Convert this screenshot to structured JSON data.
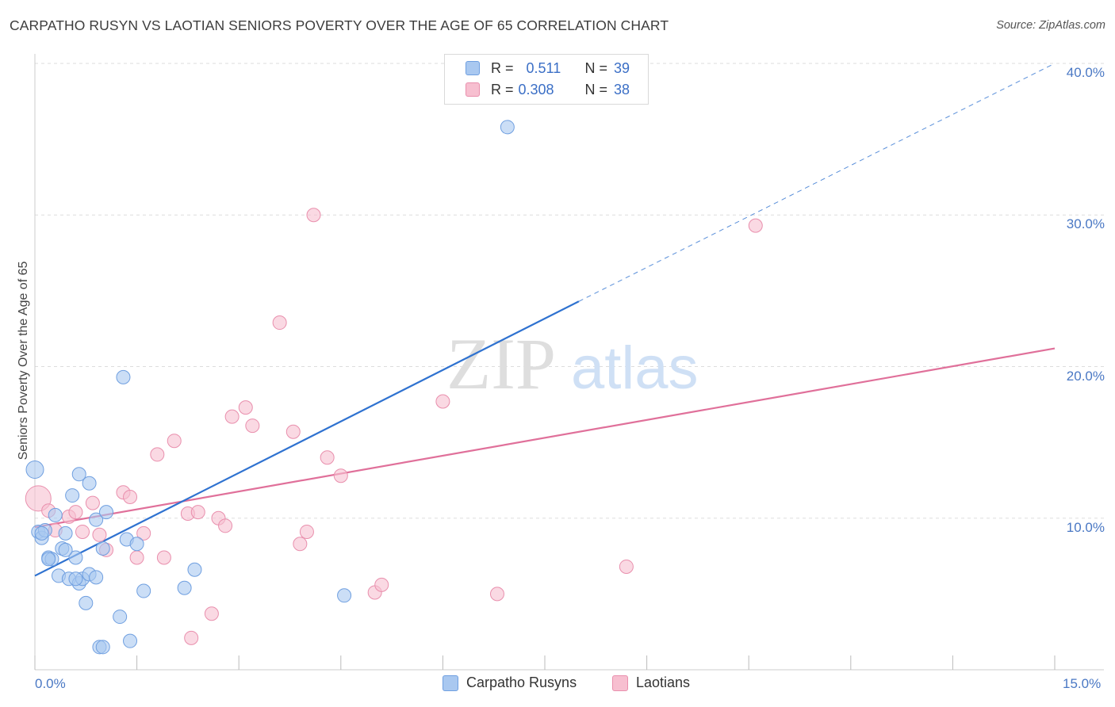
{
  "title": "CARPATHO RUSYN VS LAOTIAN SENIORS POVERTY OVER THE AGE OF 65 CORRELATION CHART",
  "source": "Source: ZipAtlas.com",
  "watermark": {
    "zip": "ZIP",
    "atlas": "atlas"
  },
  "legend": {
    "rows": [
      {
        "r_label": "R =",
        "r_value": "0.511",
        "n_label": "N =",
        "n_value": "39"
      },
      {
        "r_label": "R =",
        "r_value": "0.308",
        "n_label": "N =",
        "n_value": "38"
      }
    ]
  },
  "colors": {
    "blue_fill": "#a9c8f0",
    "blue_stroke": "#6f9fe0",
    "blue_line": "#2f72d0",
    "pink_fill": "#f7bfd0",
    "pink_stroke": "#e98fad",
    "pink_line": "#e0709a",
    "tick_text": "#4a78c4",
    "grid": "#dddddd"
  },
  "chart_data": {
    "type": "scatter",
    "title": "CARPATHO RUSYN VS LAOTIAN SENIORS POVERTY OVER THE AGE OF 65 CORRELATION CHART",
    "xlabel": "",
    "ylabel": "Seniors Poverty Over the Age of 65",
    "xlim": [
      0,
      15
    ],
    "ylim": [
      0,
      40
    ],
    "x_tick_labels": [
      "0.0%",
      "15.0%"
    ],
    "y_ticks": [
      10,
      20,
      30,
      40
    ],
    "y_tick_labels": [
      "10.0%",
      "20.0%",
      "30.0%",
      "40.0%"
    ],
    "grid": true,
    "legend_position": "top-center",
    "series": [
      {
        "name": "Carpatho Rusyns",
        "color": "#a9c8f0",
        "points": [
          [
            0.0,
            13.2
          ],
          [
            0.05,
            9.1
          ],
          [
            0.1,
            8.7
          ],
          [
            0.15,
            9.2
          ],
          [
            0.2,
            7.4
          ],
          [
            0.25,
            7.3
          ],
          [
            0.3,
            10.2
          ],
          [
            0.35,
            6.2
          ],
          [
            0.4,
            8.0
          ],
          [
            0.45,
            9.0
          ],
          [
            0.5,
            6.0
          ],
          [
            0.55,
            11.5
          ],
          [
            0.6,
            7.4
          ],
          [
            0.65,
            5.7
          ],
          [
            0.65,
            12.9
          ],
          [
            0.7,
            6.0
          ],
          [
            0.75,
            4.4
          ],
          [
            0.8,
            6.3
          ],
          [
            0.8,
            12.3
          ],
          [
            0.9,
            9.9
          ],
          [
            0.9,
            6.1
          ],
          [
            0.95,
            1.5
          ],
          [
            1.0,
            1.5
          ],
          [
            1.0,
            8.0
          ],
          [
            1.05,
            10.4
          ],
          [
            1.25,
            3.5
          ],
          [
            1.3,
            19.3
          ],
          [
            1.35,
            8.6
          ],
          [
            1.4,
            1.9
          ],
          [
            1.5,
            8.3
          ],
          [
            1.6,
            5.2
          ],
          [
            2.2,
            5.4
          ],
          [
            2.35,
            6.6
          ],
          [
            4.55,
            4.9
          ],
          [
            6.95,
            35.8
          ],
          [
            0.1,
            9.0
          ],
          [
            0.2,
            7.3
          ],
          [
            0.45,
            7.9
          ],
          [
            0.6,
            6.0
          ]
        ],
        "trend": {
          "x": [
            0.0,
            8.0
          ],
          "y": [
            6.2,
            24.3
          ],
          "dashed_to": {
            "x": 15.0,
            "y": 40.0
          }
        }
      },
      {
        "name": "Laotians",
        "color": "#f7bfd0",
        "points": [
          [
            0.05,
            11.3
          ],
          [
            0.2,
            10.5
          ],
          [
            0.3,
            9.2
          ],
          [
            0.5,
            10.1
          ],
          [
            0.6,
            10.4
          ],
          [
            0.7,
            9.1
          ],
          [
            0.85,
            11.0
          ],
          [
            0.95,
            8.9
          ],
          [
            1.05,
            7.9
          ],
          [
            1.3,
            11.7
          ],
          [
            1.4,
            11.4
          ],
          [
            1.5,
            7.4
          ],
          [
            1.6,
            9.0
          ],
          [
            1.8,
            14.2
          ],
          [
            1.9,
            7.4
          ],
          [
            2.05,
            15.1
          ],
          [
            2.25,
            10.3
          ],
          [
            2.3,
            2.1
          ],
          [
            2.4,
            10.4
          ],
          [
            2.6,
            3.7
          ],
          [
            2.7,
            10.0
          ],
          [
            2.8,
            9.5
          ],
          [
            2.9,
            16.7
          ],
          [
            3.1,
            17.3
          ],
          [
            3.2,
            16.1
          ],
          [
            3.6,
            22.9
          ],
          [
            3.8,
            15.7
          ],
          [
            3.9,
            8.3
          ],
          [
            4.0,
            9.1
          ],
          [
            4.1,
            30.0
          ],
          [
            4.3,
            14.0
          ],
          [
            4.5,
            12.8
          ],
          [
            5.0,
            5.1
          ],
          [
            5.1,
            5.6
          ],
          [
            6.0,
            17.7
          ],
          [
            6.8,
            5.0
          ],
          [
            8.7,
            6.8
          ],
          [
            10.6,
            29.3
          ]
        ],
        "trend": {
          "x": [
            0.0,
            15.0
          ],
          "y": [
            9.4,
            21.2
          ]
        }
      }
    ]
  },
  "bottom_legend": [
    {
      "label": "Carpatho Rusyns"
    },
    {
      "label": "Laotians"
    }
  ]
}
